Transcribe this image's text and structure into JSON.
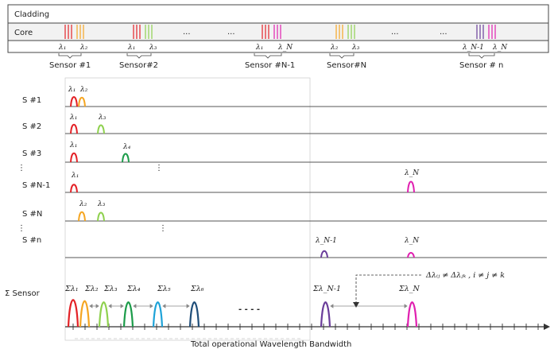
{
  "fiber": {
    "cladding_label": "Cladding",
    "core_label": "Core",
    "ellipsis": "...",
    "sensors": [
      {
        "name": "Sensor #1",
        "lambda_a": "λ₁",
        "lambda_b": "λ₂"
      },
      {
        "name": "Sensor#2",
        "lambda_a": "λ₁",
        "lambda_b": "λ₃"
      },
      {
        "name": "Sensor #N-1",
        "lambda_a": "λ₁",
        "lambda_b": "λ_N"
      },
      {
        "name": "Sensor#N",
        "lambda_a": "λ₂",
        "lambda_b": "λ₃"
      },
      {
        "name": "Sensor # n",
        "lambda_a": "λ_N-1",
        "lambda_b": "λ_N"
      }
    ]
  },
  "rows": [
    {
      "label": "S #1",
      "peaks": [
        "λ₁",
        "λ₂"
      ]
    },
    {
      "label": "S #2",
      "peaks": [
        "λ₁",
        "λ₃"
      ]
    },
    {
      "label": "S #3",
      "peaks": [
        "λ₁",
        "λ₄"
      ]
    },
    {
      "label": "S #N-1",
      "peaks": [
        "λ₁",
        "λ_N"
      ]
    },
    {
      "label": "S #N",
      "peaks": [
        "λ₂",
        "λ₃"
      ]
    },
    {
      "label": "S #n",
      "peaks": [
        "λ_N-1",
        "λ_N"
      ]
    }
  ],
  "sum_row": {
    "label": "Σ Sensor",
    "peaks": [
      "Σλ₁",
      "Σλ₂",
      "Σλ₃",
      "Σλ₄",
      "Σλ₅",
      "Σλ₆",
      "Σλ_N-1",
      "Σλ_N"
    ],
    "dashes": "- - - -",
    "equation": "Δλᵢⱼ ≠ Δλⱼₖ ,  i ≠ j ≠ k"
  },
  "vdots": "⋮",
  "x_axis_label": "Total operational Wavelength Bandwidth",
  "colors": {
    "red": "#e32227",
    "orange": "#f5a623",
    "lightgreen": "#8fd14f",
    "green": "#1c9c4a",
    "cyan": "#1fa3d8",
    "navy": "#1f4e79",
    "purple": "#6a3d9a",
    "magenta": "#e020b0",
    "axis": "#333333",
    "grid": "#c8c8c8"
  }
}
